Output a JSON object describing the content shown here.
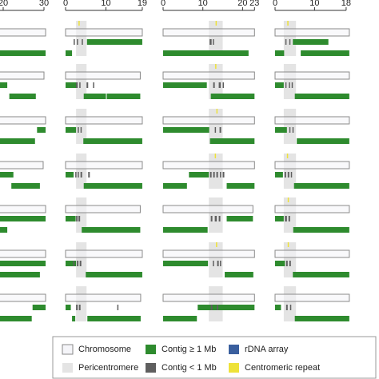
{
  "chart_data": {
    "type": "chromosome-map",
    "panels": [
      {
        "xlim": [
          0,
          30
        ],
        "xticks": [
          20,
          30
        ],
        "rows": [
          {
            "length": 30.4,
            "large": [
              [
                15,
                30.4
              ]
            ],
            "small": []
          },
          {
            "length": 30,
            "large": [
              [
                21.5,
                28
              ],
              [
                18,
                21
              ]
            ],
            "small": []
          },
          {
            "length": 30.4,
            "large": [
              [
                15,
                27.8
              ],
              [
                28.3,
                30.4
              ]
            ],
            "small": []
          },
          {
            "length": 29.8,
            "large": [
              [
                22,
                29
              ],
              [
                15,
                22.5
              ]
            ],
            "small": []
          },
          {
            "length": 30.4,
            "large": [
              [
                15,
                21
              ],
              [
                15,
                30.4
              ]
            ],
            "small": []
          },
          {
            "length": 30.4,
            "large": [
              [
                15,
                29
              ],
              [
                15,
                30.4
              ]
            ],
            "small": []
          },
          {
            "length": 30.4,
            "large": [
              [
                15,
                27
              ],
              [
                27.2,
                30.4
              ]
            ],
            "small": []
          }
        ]
      },
      {
        "xlim": [
          0,
          19
        ],
        "xticks": [
          0,
          10,
          19
        ],
        "rows": [
          {
            "length": 19,
            "peri": [
              2.6,
              5.2
            ],
            "large": [
              [
                0,
                1.6
              ],
              [
                5.3,
                19
              ]
            ],
            "small": [
              [
                2,
                2.3
              ],
              [
                2.8,
                3.1
              ],
              [
                4,
                4.3
              ]
            ],
            "cen": [
              [
                3.2,
                3.4
              ]
            ]
          },
          {
            "length": 18.5,
            "peri": [
              2.6,
              5.2
            ],
            "large": [
              [
                4.5,
                10
              ],
              [
                0,
                3
              ],
              [
                10.2,
                18.5
              ]
            ],
            "small": [
              [
                2.6,
                3
              ],
              [
                3.4,
                3.7
              ],
              [
                5.2,
                5.6
              ],
              [
                6.8,
                7.1
              ]
            ]
          },
          {
            "length": 19,
            "peri": [
              2.6,
              5.2
            ],
            "large": [
              [
                4.4,
                19
              ],
              [
                0,
                2.6
              ]
            ],
            "small": [
              [
                3,
                3.3
              ],
              [
                3.7,
                4
              ]
            ]
          },
          {
            "length": 19,
            "peri": [
              2.6,
              5.2
            ],
            "large": [
              [
                4.5,
                19
              ],
              [
                0,
                2
              ],
              [
                9,
                12
              ]
            ],
            "small": [
              [
                2.4,
                2.7
              ],
              [
                3,
                3.3
              ],
              [
                3.7,
                4.1
              ],
              [
                5.6,
                6
              ]
            ]
          },
          {
            "length": 18.5,
            "peri": [
              2.6,
              5.2
            ],
            "large": [
              [
                4,
                18.5
              ],
              [
                0,
                2.5
              ]
            ],
            "small": [
              [
                2.6,
                3
              ],
              [
                3.2,
                3.6
              ]
            ]
          },
          {
            "length": 19,
            "peri": [
              2.6,
              5.2
            ],
            "large": [
              [
                5,
                19
              ],
              [
                0,
                2.6
              ]
            ],
            "small": [
              [
                1.9,
                2.2
              ],
              [
                2.8,
                3.2
              ],
              [
                3.5,
                3.9
              ]
            ]
          },
          {
            "length": 18.6,
            "peri": [
              2.6,
              5.2
            ],
            "large": [
              [
                5.4,
                18.6
              ],
              [
                0,
                1.3
              ],
              [
                1.6,
                2.4
              ]
            ],
            "small": [
              [
                2.6,
                3
              ],
              [
                3.3,
                3.7
              ],
              [
                12.8,
                13
              ]
            ]
          }
        ]
      },
      {
        "xlim": [
          0,
          23
        ],
        "xticks": [
          0,
          10,
          20,
          23
        ],
        "rows": [
          {
            "length": 23,
            "peri": [
              11.5,
              15
            ],
            "large": [
              [
                0,
                21.5
              ]
            ],
            "small": [
              [
                11.7,
                12.2
              ],
              [
                12.5,
                12.8
              ]
            ],
            "cen": [
              [
                13.2,
                13.4
              ]
            ]
          },
          {
            "length": 23,
            "peri": [
              11.5,
              15
            ],
            "large": [
              [
                12,
                23
              ],
              [
                0,
                11
              ]
            ],
            "small": [
              [
                12.6,
                13
              ],
              [
                14,
                14.5
              ],
              [
                15,
                15.3
              ]
            ],
            "cen": [
              [
                13.1,
                13.3
              ]
            ]
          },
          {
            "length": 23,
            "peri": [
              11.5,
              15
            ],
            "large": [
              [
                11.8,
                23
              ],
              [
                0,
                11.6
              ]
            ],
            "small": [
              [
                13,
                13.3
              ],
              [
                14.2,
                14.6
              ]
            ],
            "cen": [
              [
                13.4,
                13.6
              ]
            ]
          },
          {
            "length": 23,
            "peri": [
              11.5,
              15
            ],
            "large": [
              [
                0,
                6
              ],
              [
                6.5,
                11.5
              ],
              [
                16,
                23
              ]
            ],
            "small": [
              [
                11.8,
                12.2
              ],
              [
                12.6,
                13
              ],
              [
                13.4,
                13.8
              ],
              [
                14.3,
                14.6
              ],
              [
                15,
                15.4
              ]
            ],
            "cen": [
              [
                13,
                13.2
              ]
            ]
          },
          {
            "length": 22.6,
            "peri": [
              11.5,
              15
            ],
            "large": [
              [
                0,
                11.2
              ],
              [
                16,
                22.6
              ]
            ],
            "small": [
              [
                12,
                12.4
              ],
              [
                13,
                13.5
              ],
              [
                14,
                14.4
              ]
            ]
          },
          {
            "length": 23,
            "peri": [
              11.5,
              15
            ],
            "large": [
              [
                15.5,
                22.7
              ],
              [
                0,
                11.3
              ]
            ],
            "small": [
              [
                12.5,
                12.8
              ],
              [
                13.6,
                14
              ],
              [
                14.3,
                14.6
              ]
            ],
            "cen": [
              [
                13.3,
                13.5
              ]
            ]
          },
          {
            "length": 23,
            "peri": [
              11.5,
              15
            ],
            "large": [
              [
                0,
                8.5
              ],
              [
                8.7,
                23
              ]
            ],
            "small": [
              [
                12,
                12.4
              ],
              [
                13.5,
                13.9
              ]
            ]
          }
        ]
      },
      {
        "xlim": [
          0,
          18
        ],
        "xticks": [
          0,
          10,
          18
        ],
        "rows": [
          {
            "length": 18.8,
            "peri": [
              2.2,
              5.3
            ],
            "large": [
              [
                0,
                2.3
              ],
              [
                4.5,
                13.5
              ],
              [
                6.5,
                18.8
              ]
            ],
            "small": [
              [
                2.6,
                2.9
              ],
              [
                3.6,
                3.9
              ]
            ],
            "cen": [
              [
                3.1,
                3.3
              ]
            ]
          },
          {
            "length": 18.8,
            "peri": [
              2.2,
              5.3
            ],
            "large": [
              [
                5,
                18.8
              ],
              [
                0,
                2.2
              ]
            ],
            "small": [
              [
                2.6,
                2.9
              ],
              [
                3.5,
                3.8
              ],
              [
                4.2,
                4.5
              ]
            ]
          },
          {
            "length": 18.8,
            "peri": [
              2.2,
              5.3
            ],
            "large": [
              [
                5.5,
                18.8
              ],
              [
                0,
                3
              ]
            ],
            "small": [
              [
                3.6,
                3.9
              ],
              [
                4.4,
                4.6
              ]
            ]
          },
          {
            "length": 18.8,
            "peri": [
              2.2,
              5.3
            ],
            "large": [
              [
                4.8,
                18.8
              ],
              [
                0,
                2
              ]
            ],
            "small": [
              [
                2.4,
                2.8
              ],
              [
                3.2,
                3.6
              ],
              [
                4,
                4.3
              ]
            ],
            "cen": [
              [
                3,
                3.2
              ]
            ]
          },
          {
            "length": 18.8,
            "peri": [
              2.2,
              5.3
            ],
            "large": [
              [
                4.6,
                18.8
              ],
              [
                0,
                2.2
              ]
            ],
            "small": [
              [
                2.5,
                3
              ],
              [
                3.4,
                3.8
              ]
            ],
            "cen": [
              [
                3.2,
                3.4
              ]
            ]
          },
          {
            "length": 18.8,
            "peri": [
              2.2,
              5.3
            ],
            "large": [
              [
                4.5,
                18.8
              ],
              [
                0,
                2.5
              ]
            ],
            "small": [
              [
                2.8,
                3.2
              ],
              [
                3.6,
                4
              ]
            ],
            "cen": [
              [
                3.2,
                3.4
              ]
            ]
          },
          {
            "length": 18.8,
            "peri": [
              2.2,
              5.3
            ],
            "large": [
              [
                5,
                18.8
              ],
              [
                0,
                1.5
              ]
            ],
            "small": [
              [
                2.8,
                3.2
              ],
              [
                3.8,
                4.1
              ]
            ]
          }
        ]
      }
    ],
    "legend": [
      {
        "label": "Chromosome",
        "color": "#f5f5f9"
      },
      {
        "label": "Pericentromere",
        "color": "#e4e4e4"
      },
      {
        "label": "Contig ≥ 1 Mb",
        "color": "#2e8b2e"
      },
      {
        "label": "Contig < 1 Mb",
        "color": "#5f5f5f"
      },
      {
        "label": "rDNA array",
        "color": "#3a5f9e"
      },
      {
        "label": "Centromeric repeat",
        "color": "#eee23a"
      }
    ]
  }
}
